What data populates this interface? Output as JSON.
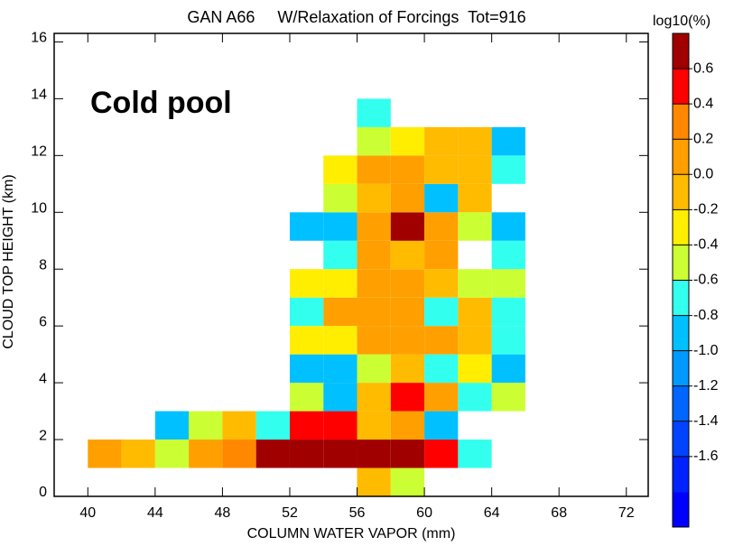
{
  "chart_data": {
    "type": "heatmap",
    "title": "GAN A66     W/Relaxation of Forcings  Tot=916",
    "annotation": "Cold pool",
    "x_label": "COLUMN WATER VAPOR (mm)",
    "y_label": "CLOUD TOP HEIGHT (km)",
    "cell_width": 2,
    "cell_height": 1,
    "xlim": [
      38,
      73.3
    ],
    "xticks": [
      40,
      44,
      48,
      52,
      56,
      60,
      64,
      68,
      72
    ],
    "ylim": [
      0,
      16.3
    ],
    "yticks": [
      0,
      2,
      4,
      6,
      8,
      10,
      12,
      14,
      16
    ],
    "x": [
      56,
      58,
      40,
      42,
      44,
      46,
      48,
      50,
      52,
      54,
      56,
      58,
      60,
      62,
      44,
      46,
      48,
      50,
      52,
      54,
      56,
      58,
      60,
      52,
      54,
      56,
      58,
      60,
      62,
      64,
      52,
      54,
      56,
      58,
      60,
      62,
      64,
      52,
      54,
      56,
      58,
      60,
      62,
      64,
      52,
      54,
      56,
      58,
      60,
      62,
      64,
      52,
      54,
      56,
      58,
      60,
      62,
      64,
      54,
      56,
      58,
      60,
      64,
      52,
      54,
      56,
      58,
      60,
      62,
      64,
      54,
      56,
      58,
      60,
      62,
      54,
      56,
      58,
      60,
      62,
      64,
      56,
      58,
      60,
      62,
      64,
      56
    ],
    "y": [
      0,
      0,
      1,
      1,
      1,
      1,
      1,
      1,
      1,
      1,
      1,
      1,
      1,
      1,
      2,
      2,
      2,
      2,
      2,
      2,
      2,
      2,
      2,
      3,
      3,
      3,
      3,
      3,
      3,
      3,
      4,
      4,
      4,
      4,
      4,
      4,
      4,
      5,
      5,
      5,
      5,
      5,
      5,
      5,
      6,
      6,
      6,
      6,
      6,
      6,
      6,
      7,
      7,
      7,
      7,
      7,
      7,
      7,
      8,
      8,
      8,
      8,
      8,
      9,
      9,
      9,
      9,
      9,
      9,
      9,
      10,
      10,
      10,
      10,
      10,
      11,
      11,
      11,
      11,
      11,
      11,
      12,
      12,
      12,
      12,
      12,
      13
    ],
    "values": [
      -0.1,
      -0.5,
      0.1,
      -0.1,
      -0.5,
      0.1,
      0.3,
      0.7,
      0.7,
      0.7,
      0.7,
      0.7,
      0.5,
      -0.7,
      -0.9,
      -0.5,
      -0.1,
      -0.7,
      0.5,
      0.5,
      -0.1,
      0.1,
      -0.9,
      -0.5,
      -0.9,
      -0.1,
      0.5,
      0.1,
      -0.7,
      -0.5,
      -0.9,
      -0.9,
      -0.5,
      -0.1,
      -0.7,
      -0.3,
      -0.9,
      -0.3,
      -0.3,
      0.1,
      0.1,
      0.1,
      -0.1,
      -0.7,
      -0.7,
      0.1,
      0.1,
      0.1,
      -0.7,
      -0.1,
      -0.7,
      -0.3,
      -0.3,
      0.1,
      0.1,
      -0.1,
      -0.5,
      -0.5,
      -0.7,
      0.1,
      -0.1,
      0.1,
      -0.7,
      -0.9,
      -0.9,
      0.1,
      0.7,
      0.1,
      -0.5,
      -0.9,
      -0.5,
      -0.1,
      0.1,
      -0.9,
      -0.1,
      -0.3,
      0.1,
      0.1,
      -0.1,
      -0.1,
      -0.7,
      -0.5,
      -0.3,
      -0.1,
      -0.1,
      -0.9,
      -0.7
    ],
    "colorbar": {
      "title": "log10(%)",
      "lim": [
        -2.0,
        0.8
      ],
      "ticks": [
        0.6,
        0.4,
        0.2,
        {
          "value": 0,
          "label": "0.0"
        },
        -0.2,
        -0.4,
        -0.6,
        -0.8,
        {
          "value": -1,
          "label": "-1.0"
        },
        -1.2,
        -1.4,
        -1.6
      ],
      "colors": [
        "#0000ff",
        "#0022ff",
        "#0044ff",
        "#0066ff",
        "#0099ff",
        "#00c0ff",
        "#33ffee",
        "#ccff33",
        "#ffee00",
        "#ffbb00",
        "#ffa000",
        "#ff8800",
        "#ff0000",
        "#a00000"
      ]
    }
  }
}
